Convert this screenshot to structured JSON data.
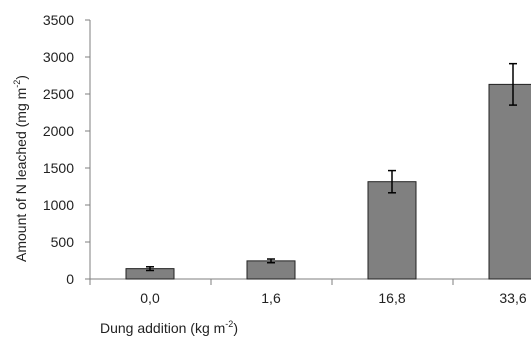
{
  "chart_data": {
    "type": "bar",
    "categories": [
      "0,0",
      "1,6",
      "16,8",
      "33,6"
    ],
    "values": [
      140,
      245,
      1315,
      2630
    ],
    "errors": [
      25,
      25,
      150,
      280
    ],
    "ylim": [
      0,
      3500
    ],
    "yticks": [
      0,
      500,
      1000,
      1500,
      2000,
      2500,
      3000,
      3500
    ],
    "ytick_labels": [
      "0",
      "500",
      "1000",
      "1500",
      "2000",
      "2500",
      "3000",
      "3500"
    ],
    "xlabel": {
      "text": "Dung addition (kg m",
      "sup": "-2",
      "tail": ")"
    },
    "ylabel": {
      "text": "Amount of N leached (mg m",
      "sup": "-2",
      "tail": ")"
    },
    "grid": false,
    "legend": "none",
    "colors": {
      "bar_fill": "#808080",
      "bar_stroke": "#222222",
      "axis": "#7f7f7f",
      "error_bar": "#000000"
    }
  }
}
